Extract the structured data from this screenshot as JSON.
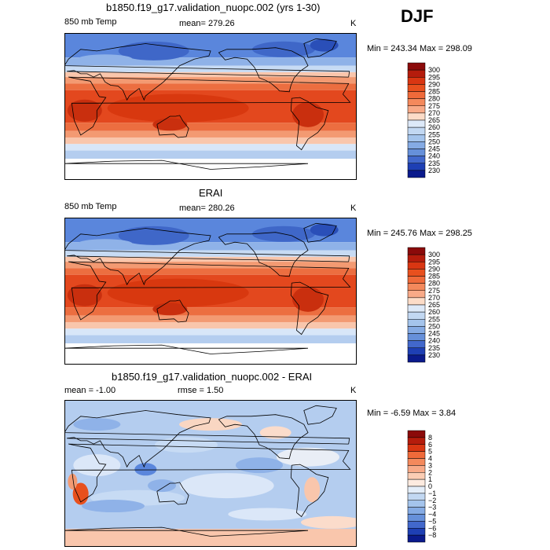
{
  "season": "DJF",
  "panels": [
    {
      "title": "b1850.f19_g17.validation_nuopc.002 (yrs 1-30)",
      "left_label": "850 mb Temp",
      "center_label": "mean= 279.26",
      "unit": "K",
      "minmax": "Min = 243.34  Max = 298.09",
      "colorbar": {
        "labels": [
          "300",
          "295",
          "290",
          "285",
          "280",
          "275",
          "270",
          "265",
          "260",
          "255",
          "250",
          "245",
          "240",
          "235",
          "230"
        ],
        "colors": [
          "#8b0a0a",
          "#b51c0c",
          "#d93612",
          "#e8501e",
          "#ef6a3a",
          "#f4895c",
          "#f8aa88",
          "#fcdcc8",
          "#dde9f8",
          "#c2d8f2",
          "#a4c4ec",
          "#85abe4",
          "#6690da",
          "#4268cc",
          "#1e3fb4",
          "#0a1a8c"
        ]
      },
      "kind": "abs"
    },
    {
      "title": "ERAI",
      "left_label": "850 mb Temp",
      "center_label": "mean= 280.26",
      "unit": "K",
      "minmax": "Min = 245.76  Max = 298.25",
      "colorbar": {
        "labels": [
          "300",
          "295",
          "290",
          "285",
          "280",
          "275",
          "270",
          "265",
          "260",
          "255",
          "250",
          "245",
          "240",
          "235",
          "230"
        ],
        "colors": [
          "#8b0a0a",
          "#b51c0c",
          "#d93612",
          "#e8501e",
          "#ef6a3a",
          "#f4895c",
          "#f8aa88",
          "#fcdcc8",
          "#dde9f8",
          "#c2d8f2",
          "#a4c4ec",
          "#85abe4",
          "#6690da",
          "#4268cc",
          "#1e3fb4",
          "#0a1a8c"
        ]
      },
      "kind": "abs"
    },
    {
      "title": "b1850.f19_g17.validation_nuopc.002 - ERAI",
      "left_label": "mean =   -1.00",
      "center_label": "rmse =    1.50",
      "unit": "K",
      "minmax": "Min =  -6.59  Max =    3.84",
      "colorbar": {
        "labels": [
          "8",
          "6",
          "5",
          "4",
          "3",
          "2",
          "1",
          "0",
          "−1",
          "−2",
          "−3",
          "−4",
          "−5",
          "−6",
          "−8"
        ],
        "colors": [
          "#8b0a0a",
          "#b51c0c",
          "#d93612",
          "#ef6a3a",
          "#f4895c",
          "#f8aa88",
          "#fbcdb4",
          "#fdebe0",
          "#e4eef9",
          "#c2d8f2",
          "#a4c4ec",
          "#85abe4",
          "#6690da",
          "#4268cc",
          "#1e3fb4",
          "#0a1a8c"
        ]
      },
      "kind": "diff"
    }
  ]
}
